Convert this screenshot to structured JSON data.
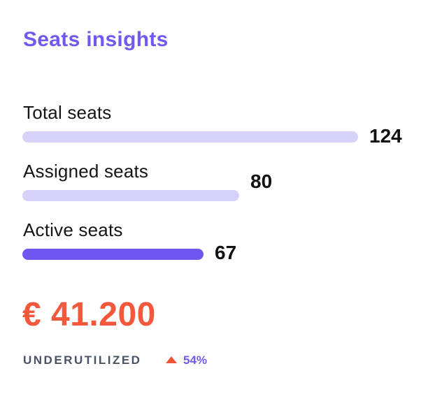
{
  "card": {
    "title": "Seats insights",
    "title_color": "#7159f0",
    "metrics": [
      {
        "label": "Total seats",
        "value": "124",
        "fraction": 1.0,
        "color": "#d6d2fa"
      },
      {
        "label": "Assigned seats",
        "value": "80",
        "fraction": 0.645,
        "color": "#d6d2fa"
      },
      {
        "label": "Active seats",
        "value": "67",
        "fraction": 0.54,
        "color": "#6f55f2"
      }
    ],
    "amount": "€ 41.200",
    "amount_color": "#f4583c",
    "status_label": "UNDERUTILIZED",
    "trend_icon": "triangle-up-icon",
    "trend_value": "54%",
    "trend_color": "#7159f0",
    "trend_icon_color": "#f0553a"
  }
}
